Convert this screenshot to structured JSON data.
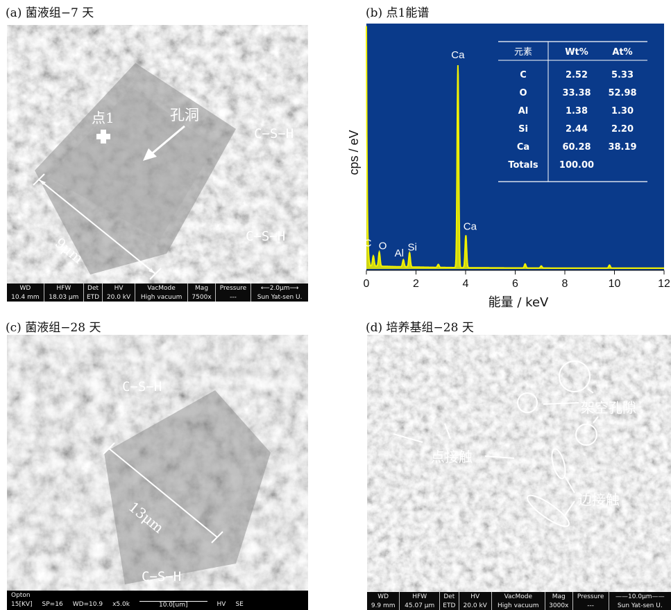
{
  "panels": {
    "a": {
      "caption": "(a) 菌液组−7 天",
      "labels": {
        "point": "点1",
        "pore": "孔洞",
        "csh1": "C−S−H",
        "csh2": "C−S−H",
        "scale": "9μm"
      },
      "info_bar": {
        "headers": [
          "WD",
          "HFW",
          "Det",
          "HV",
          "VacMode",
          "Mag",
          "Pressure",
          "⟵2.0μm⟶"
        ],
        "values": [
          "10.4 mm",
          "18.03 μm",
          "ETD",
          "20.0 kV",
          "High vacuum",
          "7500x",
          "---",
          "Sun Yat-sen U."
        ]
      }
    },
    "b": {
      "caption": "(b) 点1能谱",
      "table": {
        "headers": [
          "元素",
          "Wt%",
          "At%"
        ],
        "rows": [
          [
            "C",
            "2.52",
            "5.33"
          ],
          [
            "O",
            "33.38",
            "52.98"
          ],
          [
            "Al",
            "1.38",
            "1.30"
          ],
          [
            "Si",
            "2.44",
            "2.20"
          ],
          [
            "Ca",
            "60.28",
            "38.19"
          ],
          [
            "Totals",
            "100.00",
            ""
          ]
        ]
      }
    },
    "c": {
      "caption": "(c) 菌液组−28 天",
      "labels": {
        "csh1": "C−S−H",
        "csh2": "C−S−H",
        "scale": "13μm"
      },
      "info_bar": {
        "brand": "Opton",
        "items": [
          "15[KV]",
          "SP=16",
          "WD=10.9",
          "x5.0k",
          "10.0[um]",
          "HV",
          "SE"
        ]
      }
    },
    "d": {
      "caption": "(d) 培养基组−28 天",
      "labels": {
        "pores": "架空孔隙",
        "point_contact": "点接触",
        "edge_contact": "边接触"
      },
      "info_bar": {
        "headers": [
          "WD",
          "HFW",
          "Det",
          "HV",
          "VacMode",
          "Mag",
          "Pressure",
          "——10.0μm——"
        ],
        "values": [
          "9.9 mm",
          "45.07 μm",
          "ETD",
          "20.0 kV",
          "High vacuum",
          "3000x",
          "---",
          "Sun Yat-sen U."
        ]
      }
    }
  },
  "colors": {
    "plot_bg": "#0a3a8a",
    "spectrum": "#f2f200",
    "sem_light": "#b9b9b9",
    "sem_dark": "#3a3a3a"
  },
  "chart_data": {
    "type": "line",
    "xlabel": "能量 / keV",
    "ylabel": "cps / eV",
    "xlim": [
      0,
      12
    ],
    "x_ticks": [
      "0",
      "2",
      "4",
      "6",
      "8",
      "10",
      "12"
    ],
    "peaks": [
      {
        "label": "C",
        "x": 0.28,
        "y": 0.05
      },
      {
        "label": "O",
        "x": 0.52,
        "y": 0.07
      },
      {
        "label": "Al",
        "x": 1.49,
        "y": 0.035
      },
      {
        "label": "Si",
        "x": 1.74,
        "y": 0.07
      },
      {
        "label": "Ca",
        "x": 3.69,
        "y": 1.0
      },
      {
        "label": "Ca",
        "x": 4.01,
        "y": 0.16
      }
    ],
    "minor_peaks": [
      [
        2.9,
        0.015
      ],
      [
        6.4,
        0.02
      ],
      [
        7.05,
        0.01
      ],
      [
        9.8,
        0.015
      ]
    ]
  }
}
